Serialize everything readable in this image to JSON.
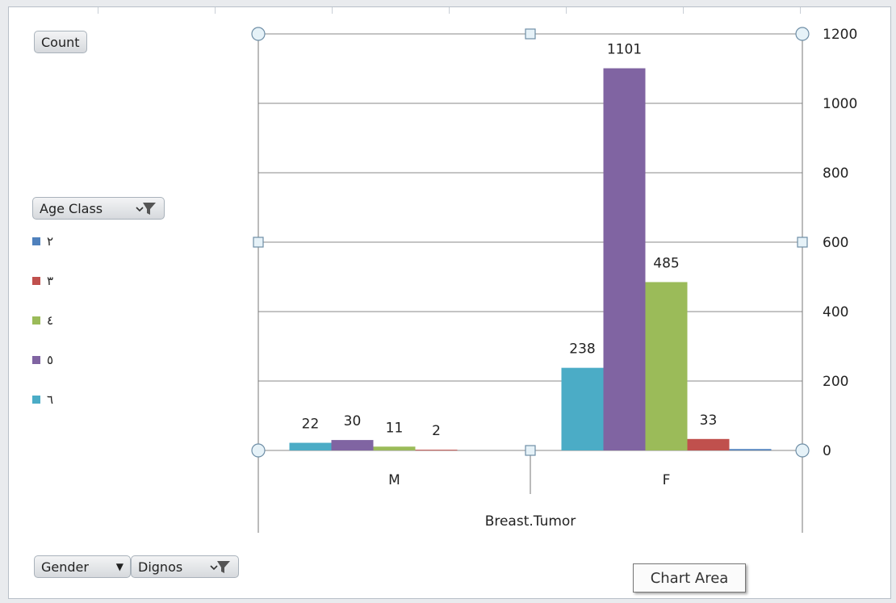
{
  "chart_data": {
    "type": "bar",
    "categories": [
      "M",
      "F"
    ],
    "series": [
      {
        "name": "٦",
        "color": "#4bacc6",
        "values": [
          22,
          238
        ]
      },
      {
        "name": "٥",
        "color": "#8064a2",
        "values": [
          30,
          1101
        ]
      },
      {
        "name": "٤",
        "color": "#9bbb59",
        "values": [
          11,
          485
        ]
      },
      {
        "name": "٣",
        "color": "#c0504d",
        "values": [
          2,
          33
        ]
      },
      {
        "name": "٢",
        "color": "#4f81bd",
        "values": [
          null,
          4
        ]
      }
    ],
    "data_labels": [
      [
        22,
        30,
        11,
        2
      ],
      [
        238,
        1101,
        485,
        33
      ]
    ],
    "ylim": [
      0,
      1200
    ],
    "yticks": [
      "0",
      "200",
      "400",
      "600",
      "800",
      "1000",
      "1200"
    ],
    "xlabel": "Breast.Tumor",
    "y_axis_position": "right",
    "grid": true
  },
  "fields": {
    "value_field": "Count",
    "legend_field": "Age Class",
    "axis_fields": [
      "Gender",
      "Dignos"
    ]
  },
  "legend": {
    "items": [
      {
        "label": "٢",
        "color": "#4f81bd"
      },
      {
        "label": "٣",
        "color": "#c0504d"
      },
      {
        "label": "٤",
        "color": "#9bbb59"
      },
      {
        "label": "٥",
        "color": "#8064a2"
      },
      {
        "label": "٦",
        "color": "#4bacc6"
      }
    ]
  },
  "tooltip": {
    "text": "Chart Area"
  }
}
